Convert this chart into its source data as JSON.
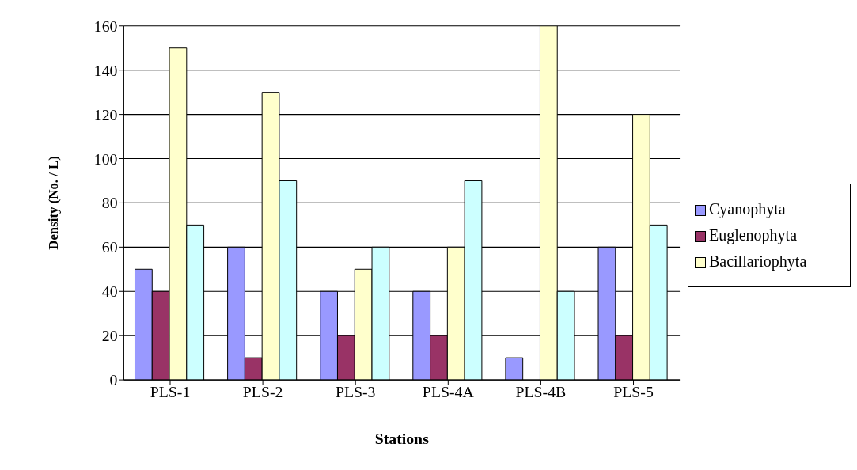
{
  "chart_data": {
    "type": "bar",
    "xlabel": "Stations",
    "ylabel": "Density (No. / L)",
    "categories": [
      "PLS-1",
      "PLS-2",
      "PLS-3",
      "PLS-4A",
      "PLS-4B",
      "PLS-5"
    ],
    "series": [
      {
        "name": "Cyanophyta",
        "color": "#9999ff",
        "values": [
          50,
          60,
          40,
          40,
          10,
          60
        ]
      },
      {
        "name": "Euglenophyta",
        "color": "#993366",
        "values": [
          40,
          10,
          20,
          20,
          0,
          20
        ]
      },
      {
        "name": "Bacillariophyta",
        "color": "#ffffcc",
        "values": [
          150,
          130,
          50,
          60,
          160,
          120
        ]
      },
      {
        "color": "#ccffff",
        "values": [
          70,
          90,
          60,
          90,
          40,
          70
        ]
      }
    ],
    "ylim": [
      0,
      160
    ],
    "yticks": [
      0,
      20,
      40,
      60,
      80,
      100,
      120,
      140,
      160
    ],
    "grid": "y",
    "legend": "right"
  }
}
